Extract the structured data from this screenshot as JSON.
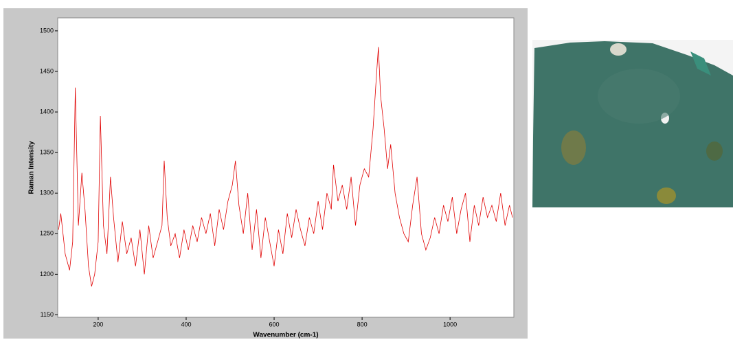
{
  "chart_data": {
    "type": "line",
    "x_label": "Wavenumber (cm-1)",
    "y_label": "Raman Intensity",
    "xlim": [
      108,
      1145
    ],
    "ylim": [
      1147,
      1516
    ],
    "xticks": [
      200,
      400,
      600,
      800,
      1000
    ],
    "yticks": [
      1150,
      1200,
      1250,
      1300,
      1350,
      1400,
      1450,
      1500
    ],
    "series": [
      {
        "color": "#e00000",
        "x": [
          110,
          115,
          125,
          135,
          142,
          148,
          155,
          163,
          170,
          178,
          185,
          192,
          200,
          205,
          212,
          220,
          228,
          235,
          245,
          255,
          265,
          275,
          285,
          295,
          305,
          315,
          325,
          335,
          345,
          350,
          357,
          365,
          375,
          385,
          395,
          405,
          415,
          425,
          435,
          445,
          455,
          465,
          475,
          485,
          495,
          505,
          512,
          520,
          530,
          540,
          550,
          560,
          570,
          580,
          590,
          600,
          610,
          620,
          630,
          640,
          650,
          660,
          670,
          680,
          690,
          700,
          710,
          720,
          730,
          735,
          745,
          755,
          765,
          775,
          785,
          795,
          805,
          815,
          825,
          832,
          837,
          842,
          850,
          858,
          865,
          875,
          885,
          895,
          905,
          915,
          925,
          935,
          945,
          955,
          965,
          975,
          985,
          995,
          1005,
          1015,
          1025,
          1035,
          1045,
          1055,
          1065,
          1075,
          1085,
          1095,
          1105,
          1115,
          1125,
          1135,
          1142
        ],
        "values": [
          1255,
          1275,
          1225,
          1205,
          1240,
          1430,
          1260,
          1325,
          1280,
          1210,
          1185,
          1200,
          1240,
          1395,
          1260,
          1225,
          1320,
          1270,
          1215,
          1265,
          1225,
          1245,
          1210,
          1255,
          1200,
          1260,
          1220,
          1240,
          1260,
          1340,
          1270,
          1235,
          1250,
          1220,
          1255,
          1230,
          1260,
          1240,
          1270,
          1250,
          1275,
          1235,
          1280,
          1255,
          1290,
          1310,
          1340,
          1285,
          1250,
          1300,
          1230,
          1280,
          1220,
          1270,
          1240,
          1210,
          1255,
          1225,
          1275,
          1245,
          1280,
          1255,
          1235,
          1270,
          1250,
          1290,
          1255,
          1300,
          1280,
          1335,
          1290,
          1310,
          1280,
          1320,
          1260,
          1310,
          1330,
          1320,
          1380,
          1440,
          1480,
          1420,
          1380,
          1330,
          1360,
          1300,
          1270,
          1250,
          1240,
          1285,
          1320,
          1250,
          1230,
          1245,
          1270,
          1250,
          1285,
          1265,
          1295,
          1250,
          1280,
          1300,
          1240,
          1285,
          1260,
          1295,
          1270,
          1285,
          1265,
          1300,
          1260,
          1285,
          1270
        ]
      }
    ]
  }
}
